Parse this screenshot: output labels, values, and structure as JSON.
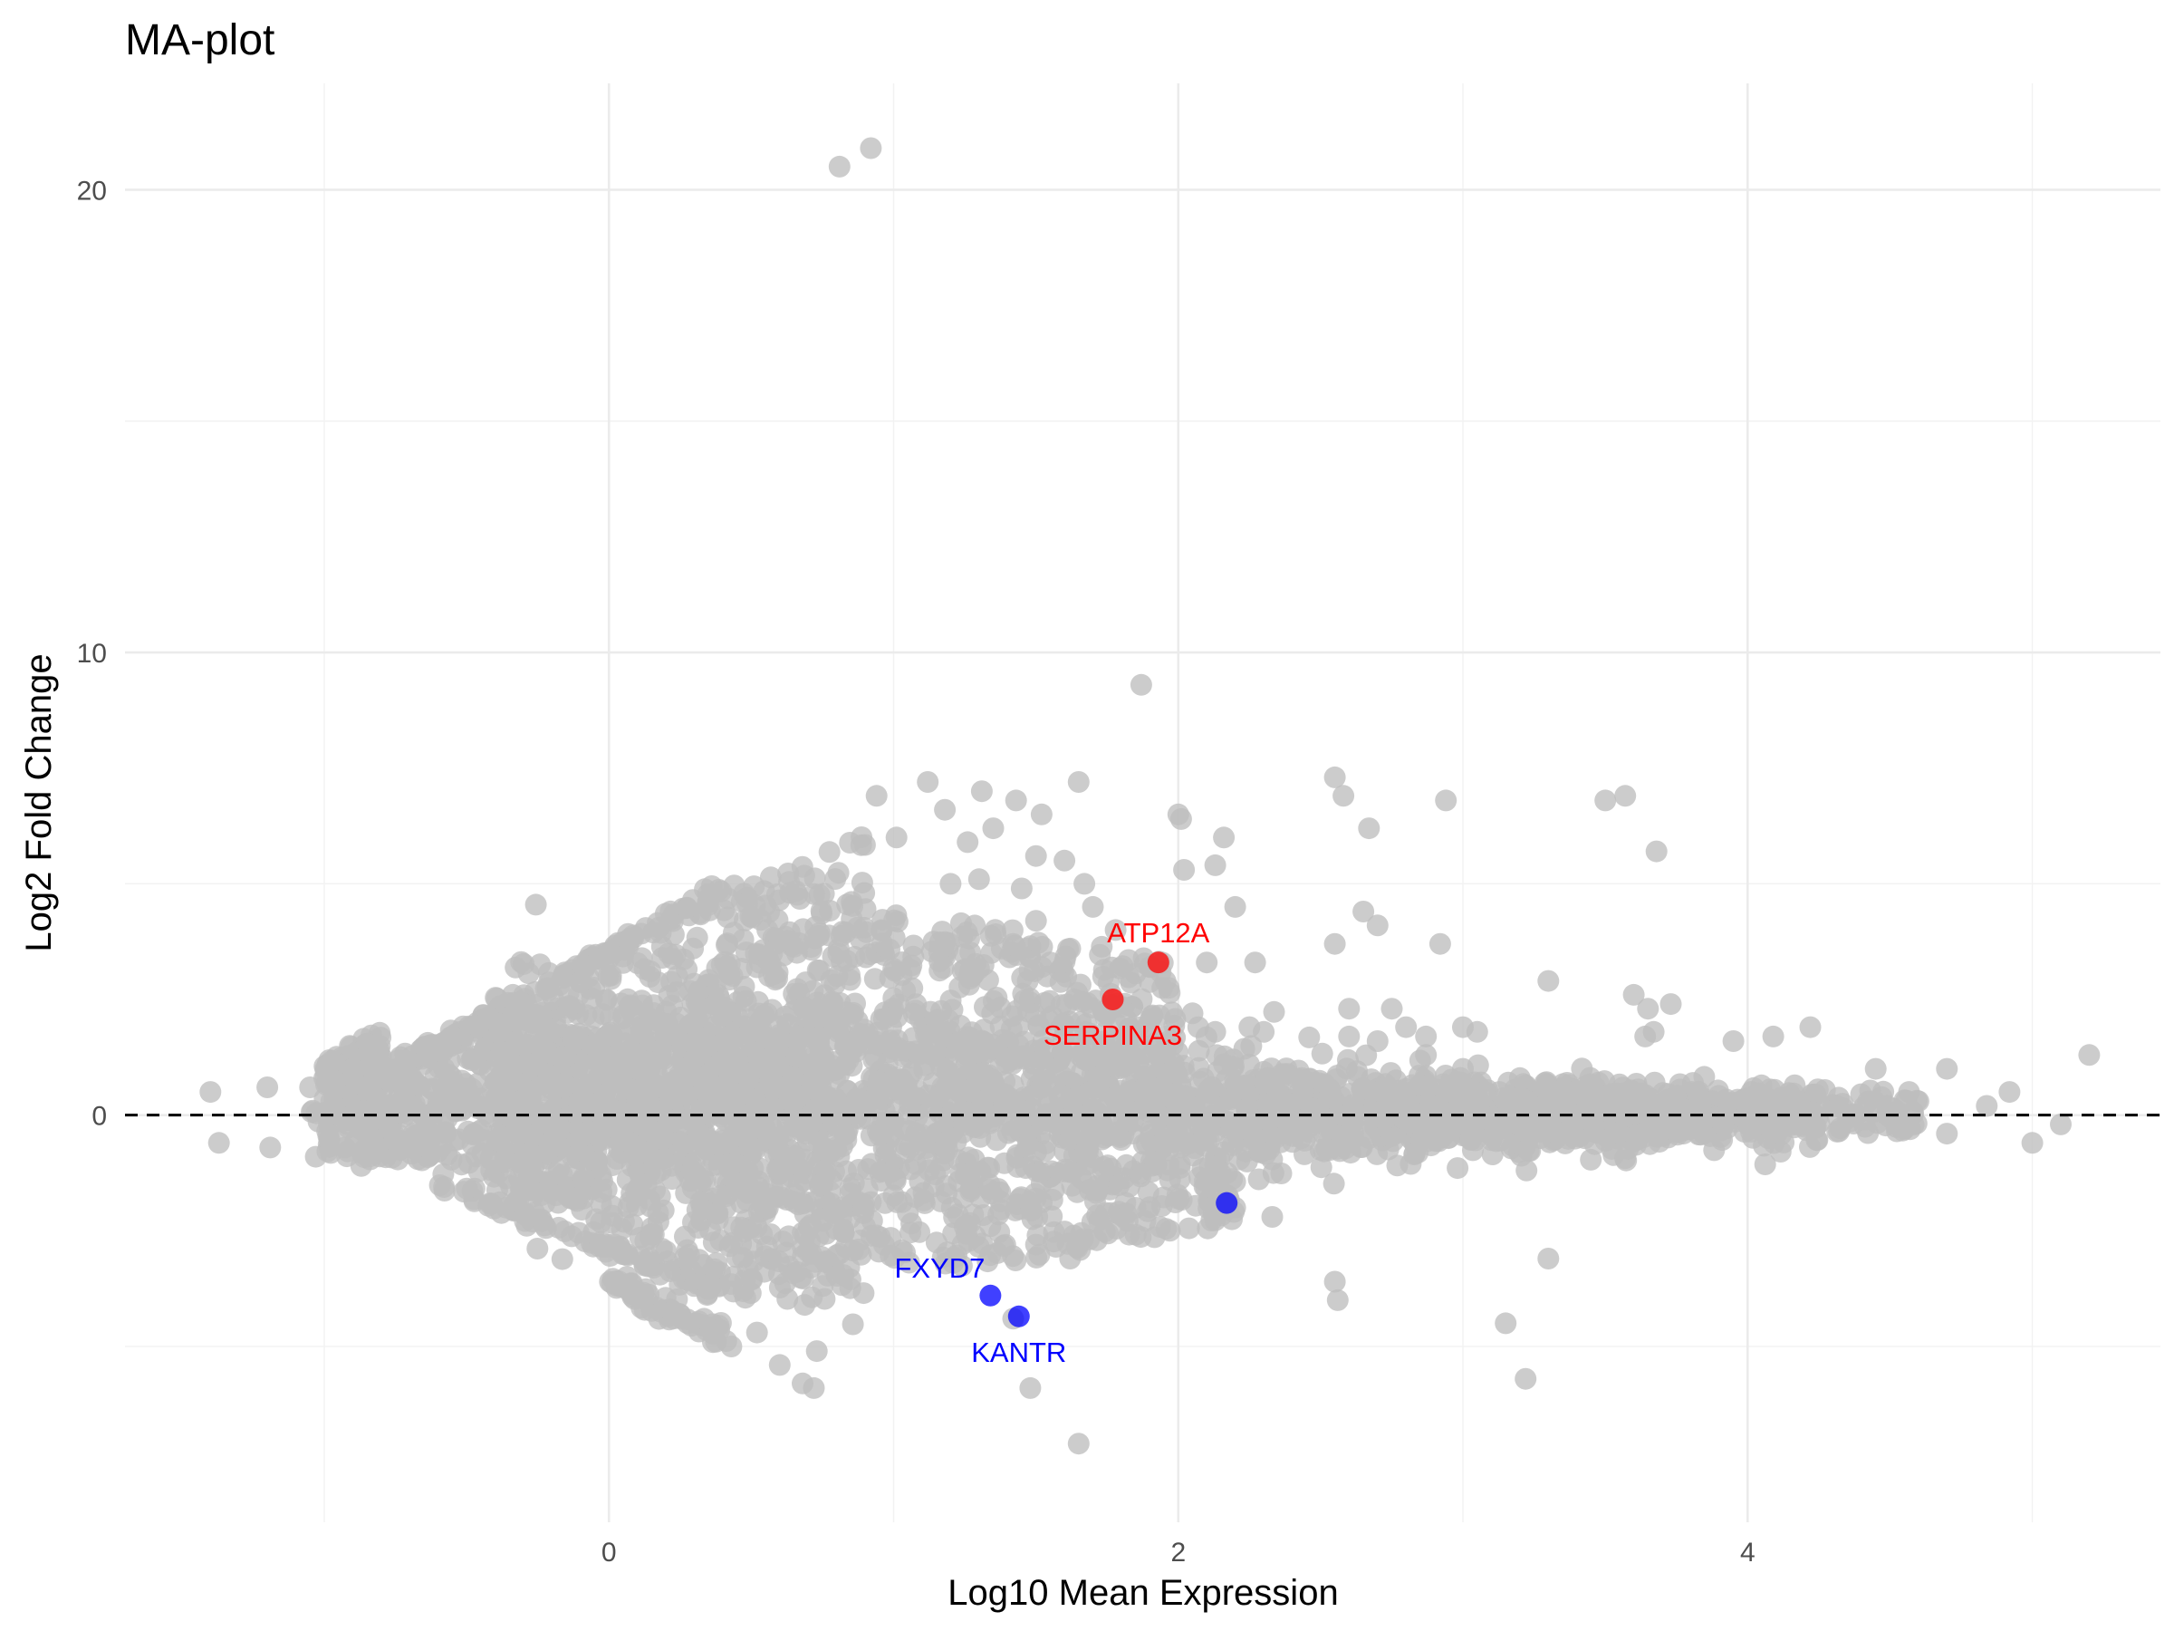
{
  "chart_data": {
    "type": "scatter",
    "title": "MA-plot",
    "xlabel": "Log10 Mean Expression",
    "ylabel": "Log2 Fold Change",
    "xlim": [
      -1.7,
      5.45
    ],
    "ylim": [
      -8.8,
      22.3
    ],
    "x_ticks": [
      0,
      2,
      4
    ],
    "x_tick_labels": [
      "0",
      "2",
      "4"
    ],
    "x_minor_ticks": [
      -1,
      1,
      3,
      5
    ],
    "y_ticks": [
      0,
      10,
      20
    ],
    "y_tick_labels": [
      "0",
      "10",
      "20"
    ],
    "y_minor_ticks": [
      -5,
      5,
      15
    ],
    "reference_line": {
      "y": 0,
      "style": "dashed",
      "color": "#000000"
    },
    "colors": {
      "background_points": "#bebebe",
      "up": "#ff0000",
      "down": "#0000ff"
    },
    "highlighted_genes": [
      {
        "name": "ATP12A",
        "x": 1.93,
        "y": 3.3,
        "direction": "up",
        "label": "ATP12A",
        "label_pos": "above"
      },
      {
        "name": "SERPINA3",
        "x": 1.77,
        "y": 2.5,
        "direction": "up",
        "label": "SERPINA3",
        "label_pos": "below"
      },
      {
        "name": "FXYD7",
        "x": 1.34,
        "y": -3.9,
        "direction": "down",
        "label": "FXYD7",
        "label_pos": "above-left"
      },
      {
        "name": "KANTR",
        "x": 1.44,
        "y": -4.35,
        "direction": "down",
        "label": "KANTR",
        "label_pos": "below"
      },
      {
        "name": "unlabeled_down",
        "x": 2.17,
        "y": -1.9,
        "direction": "down",
        "label": "",
        "label_pos": "none"
      }
    ],
    "background_points": [
      [
        0.81,
        20.5
      ],
      [
        0.92,
        20.9
      ],
      [
        1.87,
        9.3
      ],
      [
        -1.4,
        0.5
      ],
      [
        -1.37,
        -0.6
      ],
      [
        -1.2,
        0.6
      ],
      [
        -1.19,
        -0.7
      ],
      [
        -1.05,
        0.6
      ],
      [
        -1.0,
        0.8
      ],
      [
        -1.03,
        -0.9
      ],
      [
        -0.9,
        1.0
      ],
      [
        -0.87,
        -1.1
      ],
      [
        -0.95,
        0.0
      ],
      [
        0.94,
        6.9
      ],
      [
        1.12,
        7.2
      ],
      [
        1.31,
        7.0
      ],
      [
        1.43,
        6.8
      ],
      [
        1.65,
        7.2
      ],
      [
        1.52,
        6.5
      ],
      [
        1.18,
        6.6
      ],
      [
        1.35,
        6.2
      ],
      [
        1.26,
        5.9
      ],
      [
        1.01,
        6.0
      ],
      [
        1.5,
        5.6
      ],
      [
        1.6,
        5.5
      ],
      [
        1.67,
        5.0
      ],
      [
        1.45,
        4.9
      ],
      [
        1.3,
        5.1
      ],
      [
        1.2,
        5.0
      ],
      [
        1.7,
        4.5
      ],
      [
        1.5,
        4.2
      ],
      [
        1.55,
        3.3
      ],
      [
        1.38,
        3.6
      ],
      [
        1.42,
        3.7
      ],
      [
        1.78,
        4.0
      ],
      [
        1.9,
        3.2
      ],
      [
        2.1,
        3.3
      ],
      [
        2.2,
        4.5
      ],
      [
        2.27,
        3.3
      ],
      [
        2.0,
        6.5
      ],
      [
        2.01,
        6.4
      ],
      [
        2.02,
        5.3
      ],
      [
        2.16,
        6.0
      ],
      [
        2.13,
        5.4
      ],
      [
        2.55,
        7.3
      ],
      [
        2.58,
        6.9
      ],
      [
        2.67,
        6.2
      ],
      [
        2.94,
        6.8
      ],
      [
        3.5,
        6.8
      ],
      [
        3.57,
        6.9
      ],
      [
        3.68,
        5.7
      ],
      [
        2.65,
        4.4
      ],
      [
        2.7,
        4.1
      ],
      [
        2.92,
        3.7
      ],
      [
        2.55,
        3.7
      ],
      [
        3.3,
        2.9
      ],
      [
        3.6,
        2.6
      ],
      [
        3.65,
        2.3
      ],
      [
        3.73,
        2.4
      ],
      [
        3.67,
        1.8
      ],
      [
        3.64,
        1.7
      ],
      [
        3.95,
        1.6
      ],
      [
        4.09,
        1.7
      ],
      [
        4.22,
        1.9
      ],
      [
        5.2,
        1.3
      ],
      [
        4.45,
        1.0
      ],
      [
        4.7,
        1.0
      ],
      [
        4.92,
        0.5
      ],
      [
        4.6,
        0.3
      ],
      [
        4.84,
        0.2
      ],
      [
        5.1,
        -0.2
      ],
      [
        5.0,
        -0.6
      ],
      [
        4.7,
        -0.4
      ],
      [
        2.05,
        2.2
      ],
      [
        2.07,
        1.9
      ],
      [
        2.13,
        1.8
      ],
      [
        2.25,
        1.9
      ],
      [
        2.3,
        1.8
      ],
      [
        2.6,
        2.3
      ],
      [
        2.75,
        2.3
      ],
      [
        2.6,
        1.7
      ],
      [
        2.7,
        1.6
      ],
      [
        2.8,
        1.9
      ],
      [
        2.87,
        1.7
      ],
      [
        3.0,
        1.9
      ],
      [
        3.05,
        1.8
      ],
      [
        2.87,
        1.3
      ],
      [
        3.0,
        1.0
      ],
      [
        3.2,
        0.8
      ],
      [
        2.2,
        -2.0
      ],
      [
        2.33,
        -2.2
      ],
      [
        2.55,
        -3.6
      ],
      [
        2.56,
        -4.0
      ],
      [
        3.15,
        -4.5
      ],
      [
        3.22,
        -5.7
      ],
      [
        3.3,
        -3.1
      ],
      [
        1.65,
        -7.1
      ],
      [
        1.48,
        -5.9
      ],
      [
        1.42,
        -4.4
      ],
      [
        1.62,
        -3.1
      ],
      [
        1.5,
        -2.8
      ],
      [
        0.68,
        -5.8
      ],
      [
        0.72,
        -5.9
      ],
      [
        0.73,
        -5.1
      ],
      [
        0.6,
        -5.4
      ],
      [
        0.43,
        -5.0
      ],
      [
        0.52,
        -4.7
      ]
    ],
    "cloud_description_note": null
  }
}
